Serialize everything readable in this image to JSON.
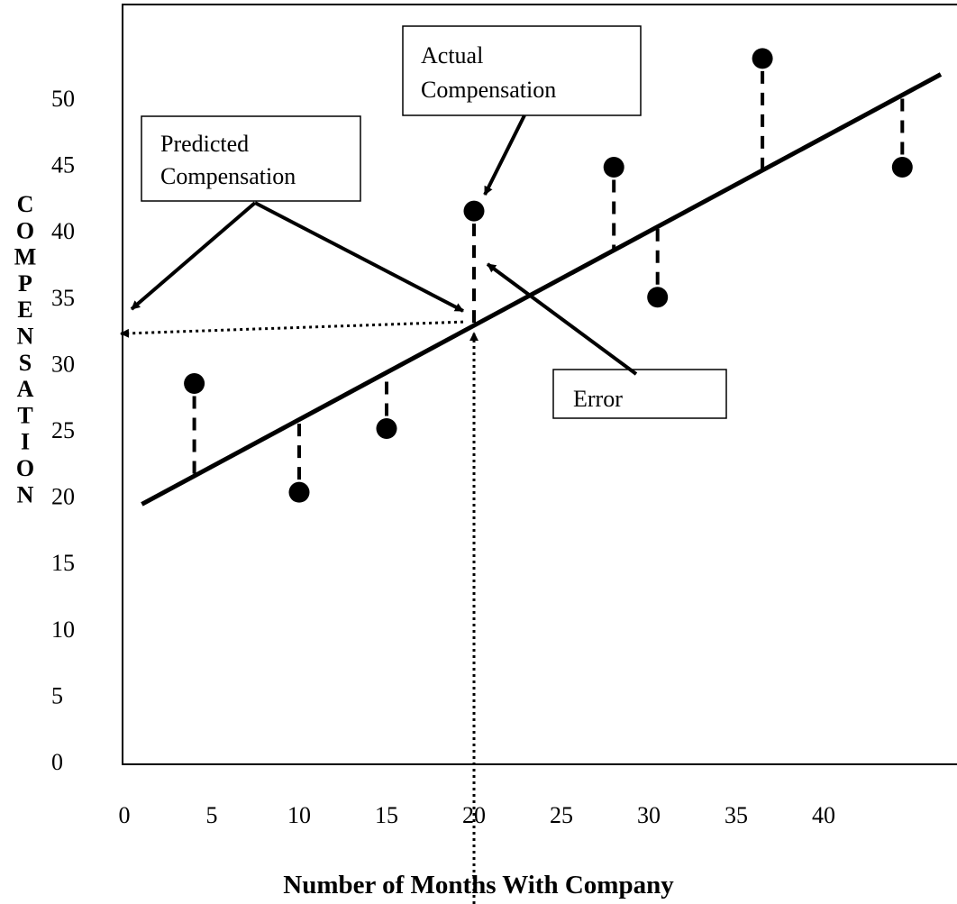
{
  "chart_data": {
    "type": "scatter",
    "title": "",
    "xlabel": "Number of Months With Company",
    "ylabel": "COMPENSATION",
    "x_ticks": [
      "0",
      "5",
      "10",
      "15",
      "20",
      "25",
      "30",
      "35",
      "40"
    ],
    "y_ticks": [
      "0",
      "5",
      "10",
      "15",
      "20",
      "25",
      "30",
      "35",
      "40",
      "45",
      "50"
    ],
    "xlim": [
      0,
      48
    ],
    "ylim": [
      0,
      54
    ],
    "points": [
      {
        "x": 4,
        "y": 28.5
      },
      {
        "x": 10,
        "y": 20.3
      },
      {
        "x": 15,
        "y": 25.1
      },
      {
        "x": 20,
        "y": 41.5
      },
      {
        "x": 28,
        "y": 44.8
      },
      {
        "x": 30.5,
        "y": 35
      },
      {
        "x": 36.5,
        "y": 53
      },
      {
        "x": 44.5,
        "y": 44.8
      }
    ],
    "regression_line": {
      "x": [
        1,
        46.7
      ],
      "y": [
        19.4,
        51.8
      ]
    },
    "grid": false,
    "annotations": [
      {
        "label": "Predicted Compensation",
        "lines": [
          "Predicted",
          "Compensation"
        ]
      },
      {
        "label": "Actual Compensation",
        "lines": [
          "Actual",
          "Compensation"
        ]
      },
      {
        "label": "Error",
        "lines": [
          "Error"
        ]
      }
    ]
  }
}
